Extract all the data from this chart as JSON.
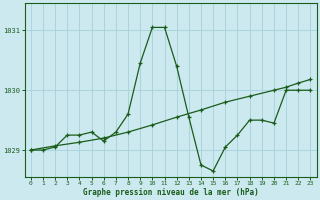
{
  "title": "Graphe pression niveau de la mer (hPa)",
  "bg_color": "#cce9f0",
  "grid_color": "#aad4dc",
  "line_color": "#1a5c1a",
  "xlim": [
    -0.5,
    23.5
  ],
  "ylim": [
    1028.55,
    1031.45
  ],
  "yticks": [
    1029,
    1030,
    1031
  ],
  "xticks": [
    0,
    1,
    2,
    3,
    4,
    5,
    6,
    7,
    8,
    9,
    10,
    11,
    12,
    13,
    14,
    15,
    16,
    17,
    18,
    19,
    20,
    21,
    22,
    23
  ],
  "series1_x": [
    0,
    1,
    2,
    3,
    4,
    5,
    6,
    7,
    8,
    9,
    10,
    11,
    12,
    13,
    14,
    15,
    16,
    17,
    18,
    19,
    20,
    21,
    22,
    23
  ],
  "series1_y": [
    1029.0,
    1029.0,
    1029.05,
    1029.25,
    1029.25,
    1029.3,
    1029.15,
    1029.3,
    1029.6,
    1030.45,
    1031.05,
    1031.05,
    1030.4,
    1029.55,
    1028.75,
    1028.65,
    1029.05,
    1029.25,
    1029.5,
    1029.5,
    1029.45,
    1030.0,
    1030.0,
    1030.0
  ],
  "series2_x": [
    0,
    2,
    4,
    6,
    8,
    10,
    12,
    14,
    16,
    18,
    20,
    21,
    22,
    23
  ],
  "series2_y": [
    1029.0,
    1029.07,
    1029.13,
    1029.2,
    1029.3,
    1029.42,
    1029.55,
    1029.67,
    1029.8,
    1029.9,
    1030.0,
    1030.05,
    1030.12,
    1030.18
  ]
}
